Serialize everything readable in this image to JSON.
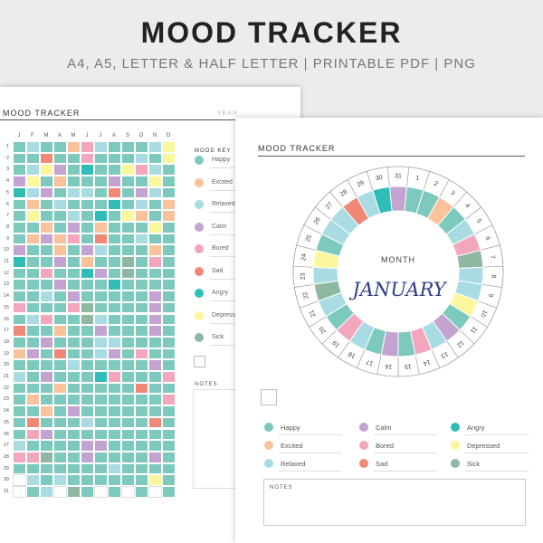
{
  "header": {
    "title": "MOOD TRACKER",
    "subtitle": "A4, A5, LETTER & HALF LETTER | PRINTABLE PDF | PNG"
  },
  "colors": {
    "happy": "#7ec9bd",
    "excited": "#f9c29a",
    "relaxed": "#a8dce2",
    "calm": "#c3a3d1",
    "bored": "#f2a7bd",
    "sad": "#f08878",
    "angry": "#2fbdb6",
    "depressed": "#fcf79c",
    "sick": "#8fb7a1",
    "empty": "#ffffff"
  },
  "yearly": {
    "title": "MOOD TRACKER",
    "year_label": "YEAR",
    "months": [
      "J",
      "F",
      "M",
      "A",
      "M",
      "J",
      "J",
      "A",
      "S",
      "O",
      "N",
      "D"
    ],
    "days": [
      "1",
      "2",
      "3",
      "4",
      "5",
      "6",
      "7",
      "8",
      "9",
      "10",
      "11",
      "12",
      "13",
      "14",
      "15",
      "16",
      "17",
      "18",
      "19",
      "20",
      "21",
      "22",
      "23",
      "24",
      "25",
      "26",
      "27",
      "28",
      "29",
      "30",
      "31"
    ],
    "key_title": "MOOD KEY",
    "key": [
      {
        "mood": "happy",
        "label": "Happy"
      },
      {
        "mood": "excited",
        "label": "Excited"
      },
      {
        "mood": "relaxed",
        "label": "Relaxed"
      },
      {
        "mood": "calm",
        "label": "Calm"
      },
      {
        "mood": "bored",
        "label": "Bored"
      },
      {
        "mood": "sad",
        "label": "Sad"
      },
      {
        "mood": "angry",
        "label": "Angry"
      },
      {
        "mood": "depressed",
        "label": "Depressed"
      },
      {
        "mood": "sick",
        "label": "Sick"
      }
    ],
    "notes_label": "NOTES",
    "grid_codes": [
      "ahaaebhaaahd",
      "aafaabaaahad",
      "ahdcagaadbha",
      "cdaeaaacaada",
      "ghcahhafacha",
      "aeahaaagahae",
      "adaahagadeae",
      "aaeacaeaaada",
      "aecebafaahaa",
      "caaeachaaaea",
      "gaacaeaaiaba",
      "aabaagcaiaaa",
      "aaacaaagaaaa",
      "aahacaaaaaca",
      "baaabiaaaaca",
      "ahbaaihaaaca",
      "faaeaacaaaca",
      "aacaaahhaaaa",
      "ecafaahcabaa",
      "aaaahaaaaaca",
      "hacaaagbaaab",
      "aaaeaaaaafaa",
      "aeaaaaaaaaab",
      "aaeacaaaaaaa",
      "afaaahaaaafa",
      "abcaaaaaaaaa",
      "haaaaccaaaaa",
      "bbiaacaaaaca",
      "aaaaaaahaaaa",
      "jhahaaaaaada",
      "jahjiajajaja"
    ]
  },
  "monthly": {
    "title": "MOOD TRACKER",
    "month_label": "MONTH",
    "month_name": "JANUARY",
    "days": [
      "1",
      "2",
      "3",
      "4",
      "5",
      "6",
      "7",
      "8",
      "9",
      "10",
      "11",
      "12",
      "13",
      "14",
      "15",
      "16",
      "17",
      "18",
      "19",
      "20",
      "21",
      "22",
      "23",
      "24",
      "25",
      "26",
      "27",
      "28",
      "29",
      "30",
      "31"
    ],
    "day_moods": [
      "happy",
      "happy",
      "excited",
      "happy",
      "relaxed",
      "bored",
      "sick",
      "relaxed",
      "relaxed",
      "depressed",
      "happy",
      "calm",
      "relaxed",
      "bored",
      "happy",
      "calm",
      "happy",
      "relaxed",
      "bored",
      "happy",
      "relaxed",
      "sick",
      "relaxed",
      "depressed",
      "happy",
      "relaxed",
      "relaxed",
      "sad",
      "relaxed",
      "angry",
      "calm"
    ],
    "legend": [
      {
        "mood": "happy",
        "label": "Happy"
      },
      {
        "mood": "calm",
        "label": "Calm"
      },
      {
        "mood": "angry",
        "label": "Angry"
      },
      {
        "mood": "excited",
        "label": "Excited"
      },
      {
        "mood": "bored",
        "label": "Bored"
      },
      {
        "mood": "depressed",
        "label": "Depressed"
      },
      {
        "mood": "relaxed",
        "label": "Relaxed"
      },
      {
        "mood": "sad",
        "label": "Sad"
      },
      {
        "mood": "sick",
        "label": "Sick"
      }
    ],
    "notes_label": "NOTES"
  }
}
